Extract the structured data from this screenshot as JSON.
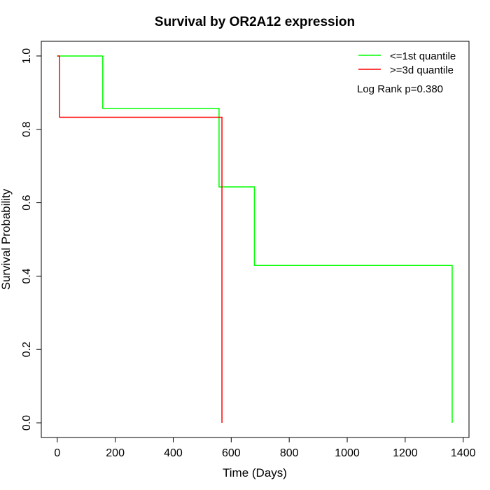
{
  "chart_data": {
    "type": "line",
    "title": "Survival by OR2A12 expression",
    "xlabel": "Time (Days)",
    "ylabel": "Survival Probability",
    "xlim": [
      -55,
      1420
    ],
    "ylim": [
      -0.04,
      1.04
    ],
    "x_ticks": [
      0,
      200,
      400,
      600,
      800,
      1000,
      1200,
      1400
    ],
    "y_ticks": [
      0.0,
      0.2,
      0.4,
      0.6,
      0.8,
      1.0
    ],
    "x_tick_labels": [
      "0",
      "200",
      "400",
      "600",
      "800",
      "1000",
      "1200",
      "1400"
    ],
    "y_tick_labels": [
      "0.0",
      "0.2",
      "0.4",
      "0.6",
      "0.8",
      "1.0"
    ],
    "grid": false,
    "legend_position": "top-right",
    "series": [
      {
        "name": "<=1st quantile",
        "color": "#00ff00",
        "step_x": [
          0,
          157,
          558,
          680,
          1362
        ],
        "step_y": [
          1.0,
          0.857,
          0.643,
          0.429,
          0.0
        ]
      },
      {
        "name": ">=3d quantile",
        "color": "#ff0000",
        "step_x": [
          0,
          8,
          568
        ],
        "step_y": [
          1.0,
          0.833,
          0.0
        ]
      }
    ],
    "annotation": "Log Rank p=0.380"
  }
}
